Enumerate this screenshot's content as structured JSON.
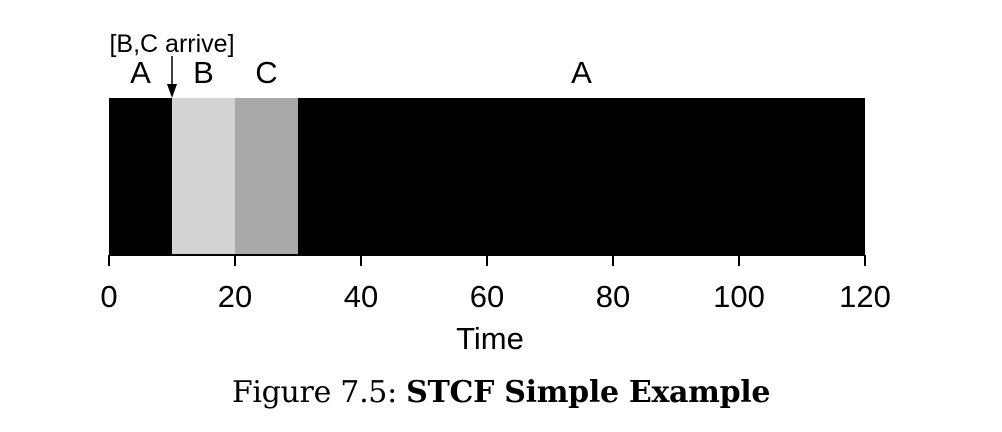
{
  "chart_data": {
    "type": "bar",
    "orientation": "horizontal",
    "segments": [
      {
        "label": "A",
        "start": 0,
        "end": 10,
        "color": "#000000"
      },
      {
        "label": "B",
        "start": 10,
        "end": 20,
        "color": "#d3d3d3"
      },
      {
        "label": "C",
        "start": 20,
        "end": 30,
        "color": "#a9a9a9"
      },
      {
        "label": "A",
        "start": 30,
        "end": 120,
        "color": "#000000"
      }
    ],
    "annotation": {
      "text": "[B,C arrive]",
      "x": 10
    },
    "xticks": [
      0,
      20,
      40,
      60,
      80,
      100,
      120
    ],
    "xlabel": "Time",
    "xlim": [
      0,
      120
    ],
    "grid": false
  },
  "caption": {
    "prefix": "Figure 7.5:",
    "title": "STCF Simple Example"
  }
}
